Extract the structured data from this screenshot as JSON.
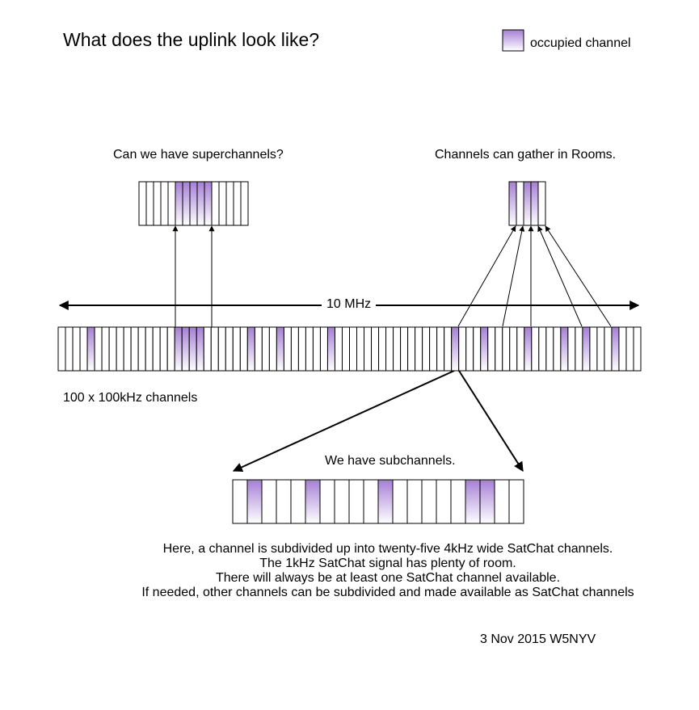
{
  "title": "What does the uplink look like?",
  "legend": {
    "label": "occupied channel",
    "color": "#a57fd4"
  },
  "labels": {
    "superchannels": "Can we have superchannels?",
    "rooms": "Channels can gather in Rooms.",
    "bandwidth": "10 MHz",
    "channels": "100 x 100kHz channels",
    "subchannels": "We have subchannels."
  },
  "notes": [
    "Here, a channel is subdivided up into twenty-five 4kHz wide SatChat channels.",
    "The 1kHz SatChat signal has plenty of room.",
    "There will always be at least one SatChat channel available.",
    "If needed, other channels can be subdivided and made available as SatChat channels"
  ],
  "credit": "3 Nov 2015 W5NYV",
  "bands": {
    "main": {
      "cells": 80,
      "occupied": [
        4,
        16,
        17,
        18,
        19,
        26,
        30,
        37,
        54,
        58,
        64,
        69,
        72,
        76
      ]
    },
    "superchannel": {
      "cells": 15,
      "occupied": [
        5,
        6,
        7,
        8,
        9
      ]
    },
    "room": {
      "cells": 5,
      "occupied": [
        0,
        2,
        3
      ]
    },
    "subchannel": {
      "cells": 20,
      "occupied": [
        1,
        5,
        10,
        16,
        17
      ]
    }
  }
}
